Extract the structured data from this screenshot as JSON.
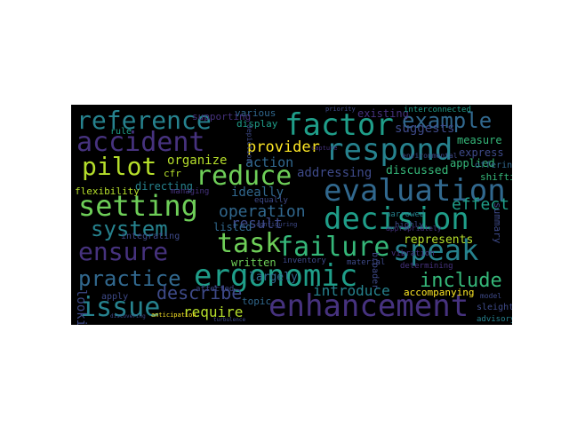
{
  "palette": {
    "dark_purple": "#46327e",
    "indigo": "#3e4a89",
    "blue": "#31688e",
    "teal": "#26828e",
    "green_teal": "#1f9e89",
    "green": "#35b779",
    "lime": "#6ece58",
    "yellow_green": "#b5de2b",
    "yellow": "#fde725"
  },
  "words": [
    {
      "text": "reference",
      "color": "#26828e"
    },
    {
      "text": "factor",
      "color": "#1f9e89"
    },
    {
      "text": "example",
      "color": "#31688e"
    },
    {
      "text": "accident",
      "color": "#46327e"
    },
    {
      "text": "respond",
      "color": "#26828e"
    },
    {
      "text": "pilot",
      "color": "#b5de2b"
    },
    {
      "text": "reduce",
      "color": "#6ece58"
    },
    {
      "text": "evaluation",
      "color": "#31688e"
    },
    {
      "text": "setting",
      "color": "#6ece58"
    },
    {
      "text": "decision",
      "color": "#1f9e89"
    },
    {
      "text": "system",
      "color": "#26828e"
    },
    {
      "text": "operation",
      "color": "#31688e"
    },
    {
      "text": "effect",
      "color": "#1f9e89"
    },
    {
      "text": "ensure",
      "color": "#46327e"
    },
    {
      "text": "task",
      "color": "#6ece58"
    },
    {
      "text": "failure",
      "color": "#35b779"
    },
    {
      "text": "speak",
      "color": "#26828e"
    },
    {
      "text": "practice",
      "color": "#31688e"
    },
    {
      "text": "ergonomic",
      "color": "#1f9e89"
    },
    {
      "text": "include",
      "color": "#35b779"
    },
    {
      "text": "describe",
      "color": "#3e4a89"
    },
    {
      "text": "introduce",
      "color": "#26828e"
    },
    {
      "text": "issue",
      "color": "#26828e"
    },
    {
      "text": "enhancement",
      "color": "#46327e"
    },
    {
      "text": "require",
      "color": "#b5de2b"
    },
    {
      "text": "provider",
      "color": "#fde725"
    },
    {
      "text": "organize",
      "color": "#b5de2b"
    },
    {
      "text": "action",
      "color": "#31688e"
    },
    {
      "text": "addressing",
      "color": "#3e4a89"
    },
    {
      "text": "ideally",
      "color": "#31688e"
    },
    {
      "text": "directing",
      "color": "#26828e"
    },
    {
      "text": "result",
      "color": "#3e4a89"
    },
    {
      "text": "listed",
      "color": "#31688e"
    },
    {
      "text": "discussed",
      "color": "#35b779"
    },
    {
      "text": "applied",
      "color": "#35b779"
    },
    {
      "text": "express",
      "color": "#3e4a89"
    },
    {
      "text": "measure",
      "color": "#35b779"
    },
    {
      "text": "represents",
      "color": "#b5de2b"
    },
    {
      "text": "summary",
      "color": "#3e4a89"
    },
    {
      "text": "written",
      "color": "#6ece58"
    },
    {
      "text": "largely",
      "color": "#31688e"
    },
    {
      "text": "accompanying",
      "color": "#fde725"
    },
    {
      "text": "various",
      "color": "#31688e"
    },
    {
      "text": "display",
      "color": "#1f9e89"
    },
    {
      "text": "existing",
      "color": "#46327e"
    },
    {
      "text": "interconnected",
      "color": "#1f9e89"
    },
    {
      "text": "suggests",
      "color": "#3e4a89"
    },
    {
      "text": "flexibility",
      "color": "#b5de2b"
    },
    {
      "text": "integrating",
      "color": "#3e4a89"
    },
    {
      "text": "shifting",
      "color": "#35b779"
    },
    {
      "text": "offering",
      "color": "#31688e"
    },
    {
      "text": "highly",
      "color": "#3e4a89"
    },
    {
      "text": "narrowed",
      "color": "#26828e"
    },
    {
      "text": "inventory",
      "color": "#3e4a89"
    },
    {
      "text": "material",
      "color": "#3e4a89"
    },
    {
      "text": "topic",
      "color": "#31688e"
    },
    {
      "text": "sleight",
      "color": "#3e4a89"
    },
    {
      "text": "advisory",
      "color": "#26828e"
    },
    {
      "text": "looking",
      "color": "#3e4a89"
    },
    {
      "text": "apply",
      "color": "#3e4a89"
    },
    {
      "text": "cfr",
      "color": "#b5de2b"
    },
    {
      "text": "rule",
      "color": "#1f9e89"
    },
    {
      "text": "supporting",
      "color": "#46327e"
    },
    {
      "text": "managing",
      "color": "#46327e"
    },
    {
      "text": "equally",
      "color": "#3e4a89"
    },
    {
      "text": "determining",
      "color": "#46327e"
    },
    {
      "text": "model",
      "color": "#3e4a89"
    },
    {
      "text": "broader",
      "color": "#3e4a89"
    },
    {
      "text": "affected",
      "color": "#3e4a89"
    },
    {
      "text": "configuring",
      "color": "#3e4a89"
    },
    {
      "text": "priority",
      "color": "#3e4a89"
    },
    {
      "text": "capture",
      "color": "#46327e"
    },
    {
      "text": "environmental",
      "color": "#3e4a89"
    },
    {
      "text": "appropriately",
      "color": "#46327e"
    },
    {
      "text": "vibration",
      "color": "#46327e"
    },
    {
      "text": "depiction",
      "color": "#3e4a89"
    },
    {
      "text": "turbulence",
      "color": "#3e4a89"
    },
    {
      "text": "anticipation",
      "color": "#fde725"
    },
    {
      "text": "discovering",
      "color": "#3e4a89"
    }
  ]
}
